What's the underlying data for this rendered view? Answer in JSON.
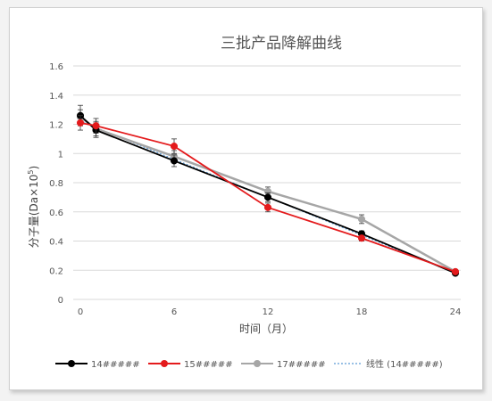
{
  "chart_data": {
    "type": "line",
    "title": "三批产品降解曲线",
    "xlabel": "时间（月）",
    "ylabel": "分子量(Da×10",
    "ylabel_sup": "5",
    "ylabel_end": ")",
    "x_ticks": [
      "0",
      "6",
      "12",
      "18",
      "24"
    ],
    "y_ticks": [
      "0",
      "0.2",
      "0.4",
      "0.6",
      "0.8",
      "1",
      "1.2",
      "1.4",
      "1.6"
    ],
    "xlim": [
      0,
      24
    ],
    "ylim": [
      0,
      1.6
    ],
    "grid": "horizontal",
    "legend_position": "bottom",
    "series": [
      {
        "name": "14#####",
        "color": "#000000",
        "x": [
          0,
          1,
          6,
          12,
          18,
          24
        ],
        "y": [
          1.26,
          1.16,
          0.95,
          0.7,
          0.45,
          0.18
        ],
        "err": [
          0.07,
          0.05,
          0.04,
          0.03,
          0.02,
          0.01
        ]
      },
      {
        "name": "15#####",
        "color": "#e41a1c",
        "x": [
          0,
          1,
          6,
          12,
          18,
          24
        ],
        "y": [
          1.21,
          1.19,
          1.05,
          0.63,
          0.42,
          0.19
        ],
        "err": [
          0.05,
          0.05,
          0.05,
          0.03,
          0.02,
          0.01
        ]
      },
      {
        "name": "17#####",
        "color": "#a6a6a6",
        "x": [
          0,
          1,
          6,
          12,
          18,
          24
        ],
        "y": [
          1.25,
          1.17,
          0.98,
          0.74,
          0.55,
          0.19
        ],
        "err": [
          0.05,
          0.05,
          0.04,
          0.03,
          0.03,
          0.01
        ]
      }
    ],
    "trendline": {
      "name": "线性 (14#####)",
      "color": "#5b9bd5",
      "x": [
        0,
        24
      ],
      "y": [
        1.22,
        0.18
      ]
    }
  }
}
